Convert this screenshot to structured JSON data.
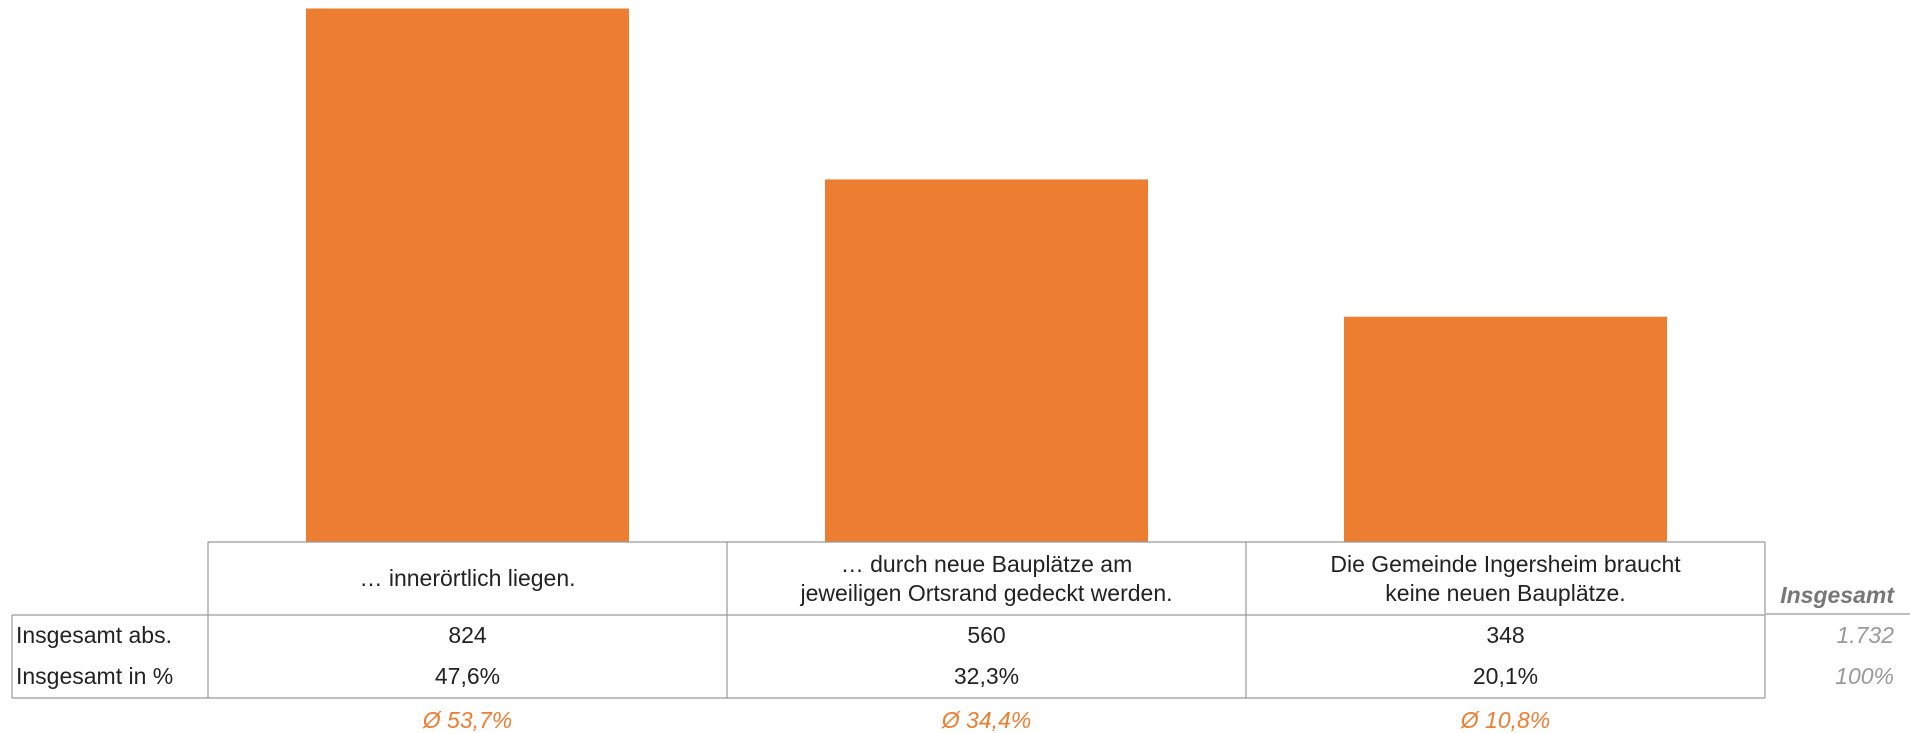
{
  "chart_data": {
    "type": "bar",
    "categories": [
      "… innerörtlich liegen.",
      "… durch neue Bauplätze am\njeweiligen Ortsrand gedeckt werden.",
      "Die Gemeinde Ingersheim braucht\nkeine neuen Bauplätze."
    ],
    "series": [
      {
        "name": "Insgesamt abs.",
        "color": "#ed7d31",
        "values": [
          824,
          560,
          348
        ]
      },
      {
        "name": "Insgesamt in %",
        "values": [
          47.6,
          32.3,
          20.1
        ],
        "value_labels": [
          "47,6%",
          "32,3%",
          "20,1%"
        ]
      }
    ],
    "ylim": [
      0,
      824
    ],
    "averages": [
      "Ø 53,7%",
      "Ø 34,4%",
      "Ø 10,8%"
    ],
    "total": {
      "name": "Insgesamt",
      "values": [
        1732,
        100
      ],
      "value_labels": [
        "1.732",
        "100%"
      ]
    }
  }
}
